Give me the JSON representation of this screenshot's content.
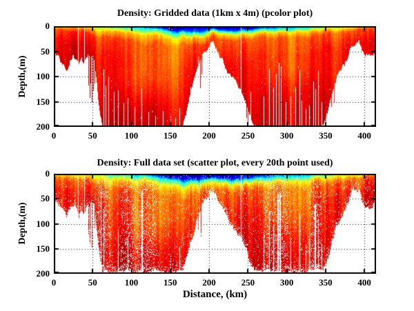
{
  "figure": {
    "background": "#ffffff"
  },
  "chart_data": {
    "type": "heatmap",
    "colormap": "jet",
    "colormap_hex_stops": [
      "#00008f",
      "#0040ff",
      "#00cfff",
      "#66ff99",
      "#ffe600",
      "#ff8000",
      "#e81400",
      "#9b0000"
    ],
    "layout": {
      "panel_arrangement": "2x1",
      "grid": "dotted",
      "axis_box": true
    },
    "axes": {
      "xlabel": "Distance, (km)",
      "ylabel": "Depth,(m)",
      "xlim": [
        0,
        415
      ],
      "depth_lim": [
        0,
        200
      ],
      "xticks": [
        0,
        50,
        100,
        150,
        200,
        250,
        300,
        350,
        400
      ],
      "yticks": [
        0,
        50,
        100,
        150,
        200
      ]
    },
    "panels": [
      {
        "title": "Density: Gridded data (1km x 4m) (pcolor plot)",
        "style": "pcolor",
        "has_xlabel": false,
        "speckle_fraction": 0.004,
        "data_gaps": [
          [
            31,
            0
          ],
          [
            39,
            0
          ],
          [
            64,
            85
          ],
          [
            67,
            118
          ],
          [
            70,
            100
          ],
          [
            77,
            130
          ],
          [
            83,
            128
          ],
          [
            90,
            150
          ],
          [
            95,
            142
          ],
          [
            104,
            160
          ],
          [
            113,
            125
          ],
          [
            122,
            170
          ],
          [
            131,
            178
          ],
          [
            140,
            168
          ],
          [
            150,
            175
          ],
          [
            156,
            182
          ],
          [
            162,
            163
          ],
          [
            176,
            120
          ],
          [
            183,
            90
          ],
          [
            186,
            60
          ],
          [
            189,
            75
          ],
          [
            191,
            55
          ],
          [
            241,
            3
          ],
          [
            253,
            130
          ],
          [
            270,
            140
          ],
          [
            277,
            85
          ],
          [
            283,
            120
          ],
          [
            286,
            95
          ],
          [
            290,
            72
          ],
          [
            292,
            80
          ],
          [
            299,
            150
          ],
          [
            305,
            140
          ],
          [
            311,
            120
          ],
          [
            316,
            88
          ],
          [
            319,
            148
          ],
          [
            324,
            165
          ],
          [
            329,
            158
          ],
          [
            334,
            110
          ],
          [
            337,
            125
          ],
          [
            340,
            88
          ],
          [
            345,
            150
          ],
          [
            385,
            60
          ]
        ],
        "deep_spike_columns": [
          [
            44.5,
            118
          ],
          [
            46,
            140
          ],
          [
            47.5,
            112
          ],
          [
            49,
            148
          ],
          [
            50.5,
            126
          ],
          [
            52,
            108
          ],
          [
            186,
            105
          ],
          [
            188,
            122
          ],
          [
            190,
            95
          ],
          [
            248,
            178
          ],
          [
            250,
            190
          ],
          [
            357,
            160
          ],
          [
            361,
            150
          ]
        ],
        "speckle_cluster_km": []
      },
      {
        "title": "Density: Full data set (scatter plot, every 20th point used)",
        "style": "scatter",
        "has_xlabel": true,
        "speckle_fraction": 0.055,
        "max_point_depth_m": 193,
        "data_gaps": [
          [
            31,
            0
          ],
          [
            39,
            0
          ],
          [
            60,
            25
          ],
          [
            64,
            70
          ],
          [
            83,
            110
          ],
          [
            95,
            125
          ],
          [
            113,
            35,
            2
          ],
          [
            150,
            160
          ],
          [
            162,
            145
          ],
          [
            241,
            2
          ],
          [
            270,
            120
          ],
          [
            277,
            75
          ],
          [
            283,
            100
          ],
          [
            288,
            40,
            2
          ],
          [
            291,
            38,
            2
          ],
          [
            305,
            130
          ],
          [
            316,
            80
          ],
          [
            324,
            140
          ],
          [
            329,
            130
          ],
          [
            336,
            60,
            2
          ],
          [
            340,
            90
          ],
          [
            345,
            140
          ]
        ],
        "deep_spike_columns": [
          [
            44.5,
            120
          ],
          [
            46,
            138
          ],
          [
            49,
            145
          ],
          [
            52,
            110
          ],
          [
            186,
            110
          ],
          [
            189,
            125
          ]
        ],
        "speckle_cluster_km": [
          [
            55,
            72
          ],
          [
            86,
            132
          ],
          [
            270,
            302
          ],
          [
            328,
            344
          ]
        ]
      }
    ],
    "field": {
      "bathymetry": {
        "km": [
          0,
          4,
          8,
          12,
          16,
          20,
          24,
          28,
          32,
          35,
          38,
          42,
          45,
          48,
          51,
          54,
          57,
          60,
          63,
          80,
          100,
          120,
          140,
          160,
          166,
          171,
          176,
          181,
          186,
          191,
          196,
          201,
          205,
          209,
          213,
          218,
          223,
          228,
          234,
          240,
          246,
          251,
          255,
          259,
          270,
          290,
          310,
          330,
          344,
          349,
          354,
          359,
          364,
          369,
          374,
          379,
          383,
          387,
          390,
          393,
          396,
          400,
          404,
          408,
          412,
          415
        ],
        "depth_m": [
          55,
          60,
          72,
          80,
          88,
          70,
          58,
          68,
          84,
          66,
          80,
          62,
          58,
          60,
          56,
          90,
          140,
          178,
          200,
          200,
          200,
          200,
          200,
          200,
          192,
          168,
          135,
          108,
          82,
          62,
          50,
          40,
          30,
          42,
          56,
          72,
          90,
          104,
          116,
          128,
          145,
          172,
          192,
          200,
          200,
          200,
          200,
          200,
          200,
          190,
          165,
          135,
          105,
          90,
          76,
          58,
          40,
          30,
          36,
          26,
          48,
          62,
          58,
          66,
          58,
          54
        ]
      },
      "layer_depths": {
        "km": [
          0,
          20,
          40,
          55,
          70,
          85,
          100,
          115,
          125,
          140,
          155,
          170,
          185,
          195,
          205,
          212,
          225,
          240,
          255,
          270,
          285,
          300,
          315,
          330,
          345,
          360,
          375,
          390,
          405,
          415
        ],
        "blue_end_m": [
          0,
          0,
          0,
          0,
          0,
          0,
          0,
          0,
          2,
          4,
          7,
          9,
          10,
          8,
          4,
          6,
          8,
          8,
          6,
          3,
          1,
          0,
          0,
          0,
          0,
          0,
          0,
          0,
          0,
          0
        ],
        "cyan_end_m": [
          0,
          0,
          0,
          0,
          0,
          2,
          4,
          5,
          6,
          8,
          11,
          13,
          14,
          12,
          7,
          9,
          11,
          12,
          10,
          8,
          7,
          6,
          5,
          3,
          1,
          0,
          0,
          0,
          0,
          0
        ],
        "yellow_end_m": [
          1,
          2,
          3,
          8,
          10,
          12,
          14,
          15,
          16,
          18,
          20,
          22,
          22,
          20,
          12,
          14,
          17,
          18,
          17,
          15,
          14,
          13,
          12,
          10,
          8,
          5,
          4,
          2,
          1,
          1
        ],
        "orange_end_m": [
          6,
          9,
          10,
          20,
          26,
          30,
          30,
          32,
          33,
          34,
          36,
          38,
          36,
          32,
          22,
          24,
          28,
          30,
          28,
          27,
          26,
          25,
          24,
          22,
          18,
          14,
          12,
          8,
          6,
          6
        ]
      }
    }
  }
}
